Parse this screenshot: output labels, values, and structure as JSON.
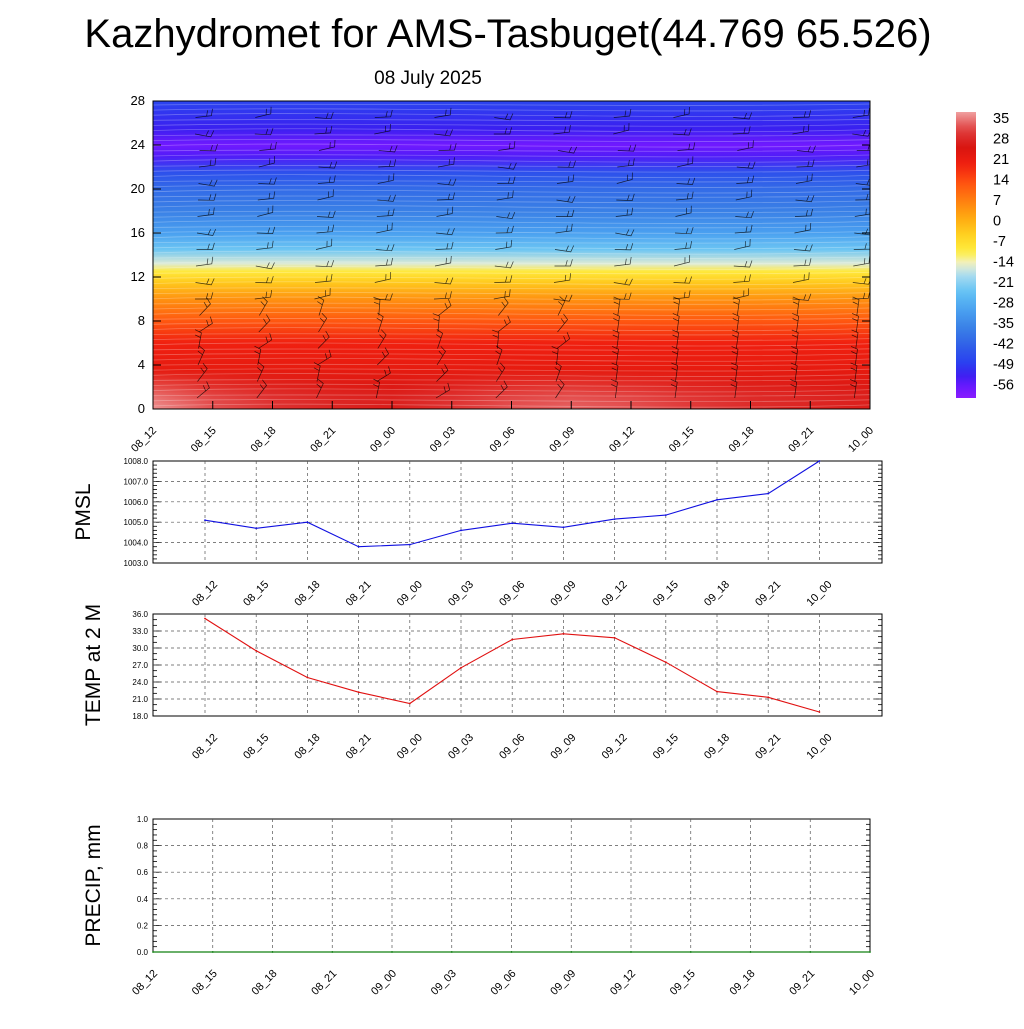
{
  "header": {
    "title": "Kazhydromet for AMS-Tasbuget(44.769 65.526)",
    "subtitle": "08 July 2025"
  },
  "colors": {
    "pmsl_line": "#1010e0",
    "temp_line": "#e01010",
    "precip_line": "#108010",
    "grid": "#555555"
  },
  "chart_data": [
    {
      "type": "heatmap",
      "name": "temperature-height-section",
      "categories": [
        "08_12",
        "08_15",
        "08_18",
        "08_21",
        "09_00",
        "09_03",
        "09_06",
        "09_09",
        "09_12",
        "09_15",
        "09_18",
        "09_21",
        "10_00"
      ],
      "ylim": [
        0,
        28
      ],
      "yticks": [
        0,
        4,
        8,
        12,
        16,
        20,
        24,
        28
      ],
      "colorbar": {
        "labels": [
          "35",
          "28",
          "21",
          "14",
          "7",
          "0",
          "-7",
          "-14",
          "-21",
          "-28",
          "-35",
          "-42",
          "-49",
          "-56"
        ],
        "range": [
          -60,
          38
        ]
      },
      "surface_values": [
        37,
        33,
        30,
        28,
        27,
        30,
        33,
        34,
        33,
        31,
        29,
        28,
        27
      ],
      "profile": [
        {
          "height": 0,
          "value": 32
        },
        {
          "height": 2,
          "value": 24
        },
        {
          "height": 4,
          "value": 22
        },
        {
          "height": 6,
          "value": 20
        },
        {
          "height": 8,
          "value": 13
        },
        {
          "height": 10,
          "value": 5
        },
        {
          "height": 11.5,
          "value": -3
        },
        {
          "height": 12.5,
          "value": -9
        },
        {
          "height": 13.2,
          "value": -15
        },
        {
          "height": 14.5,
          "value": -23
        },
        {
          "height": 16,
          "value": -30
        },
        {
          "height": 18,
          "value": -36
        },
        {
          "height": 20,
          "value": -40
        },
        {
          "height": 21.5,
          "value": -45
        },
        {
          "height": 23,
          "value": -54
        },
        {
          "height": 24,
          "value": -57
        },
        {
          "height": 25.5,
          "value": -52
        },
        {
          "height": 28,
          "value": -47
        }
      ]
    },
    {
      "type": "line",
      "name": "pmsl",
      "ylabel": "PMSL",
      "categories": [
        "08_12",
        "08_15",
        "08_18",
        "08_21",
        "09_00",
        "09_03",
        "09_06",
        "09_09",
        "09_12",
        "09_15",
        "09_18",
        "09_21",
        "10_00"
      ],
      "values": [
        1005.1,
        1004.7,
        1005.0,
        1003.8,
        1003.9,
        1004.6,
        1004.95,
        1004.75,
        1005.15,
        1005.35,
        1006.1,
        1006.4,
        1008.0
      ],
      "ylim": [
        1003.0,
        1008.0
      ],
      "yticks": [
        "1003.0",
        "1004.0",
        "1005.0",
        "1006.0",
        "1007.0",
        "1008.0"
      ],
      "grid": true
    },
    {
      "type": "line",
      "name": "temp-2m",
      "ylabel": "TEMP at 2 M",
      "categories": [
        "08_12",
        "08_15",
        "08_18",
        "08_21",
        "09_00",
        "09_03",
        "09_06",
        "09_09",
        "09_12",
        "09_15",
        "09_18",
        "09_21",
        "10_00"
      ],
      "values": [
        35.2,
        29.5,
        24.8,
        22.2,
        20.2,
        26.5,
        31.5,
        32.5,
        31.8,
        27.5,
        22.3,
        21.3,
        18.7
      ],
      "ylim": [
        18.0,
        36.0
      ],
      "yticks": [
        "18.0",
        "21.0",
        "24.0",
        "27.0",
        "30.0",
        "33.0",
        "36.0"
      ],
      "grid": true
    },
    {
      "type": "line",
      "name": "precip",
      "ylabel": "PRECIP, mm",
      "categories": [
        "08_12",
        "08_15",
        "08_18",
        "08_21",
        "09_00",
        "09_03",
        "09_06",
        "09_09",
        "09_12",
        "09_15",
        "09_18",
        "09_21",
        "10_00"
      ],
      "values": [
        0,
        0,
        0,
        0,
        0,
        0,
        0,
        0,
        0,
        0,
        0,
        0,
        0
      ],
      "ylim": [
        0,
        1
      ],
      "yticks": [
        "0.0",
        "0.2",
        "0.4",
        "0.6",
        "0.8",
        "1.0"
      ],
      "grid": true
    }
  ]
}
